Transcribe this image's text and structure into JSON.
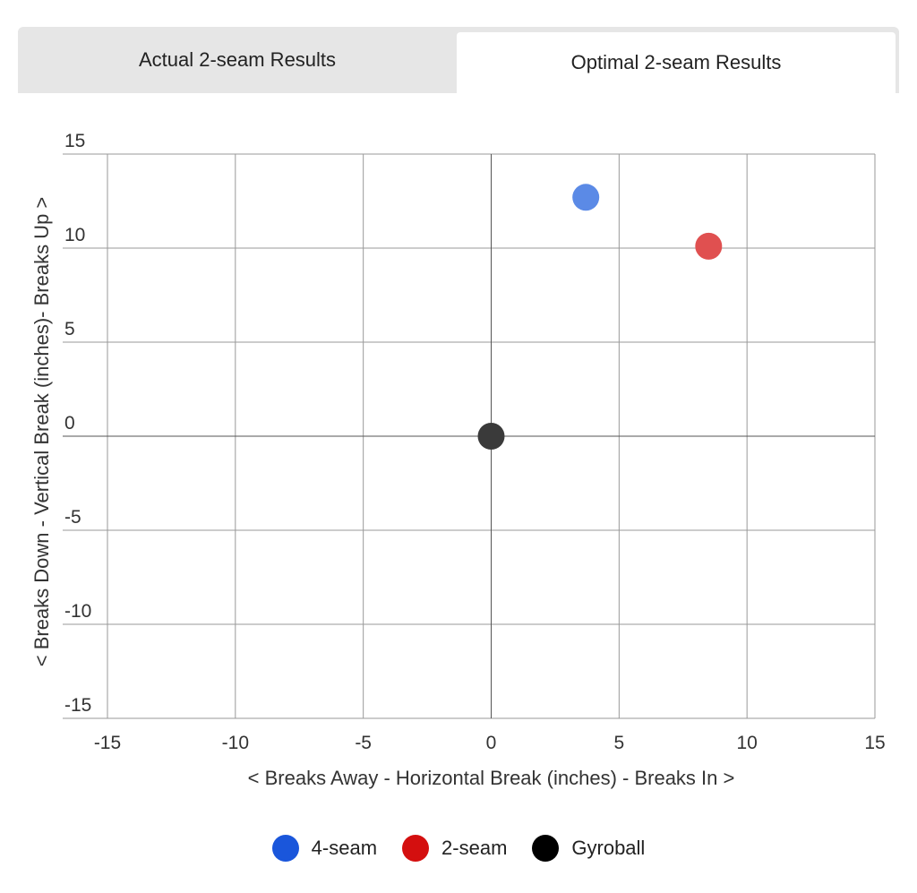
{
  "tabs": [
    {
      "label": "Actual 2-seam Results",
      "active": false
    },
    {
      "label": "Optimal 2-seam Results",
      "active": true
    }
  ],
  "chart_data": {
    "type": "scatter",
    "xlabel": "< Breaks Away - Horizontal Break (inches) - Breaks In >",
    "ylabel": "< Breaks Down - Vertical Break (inches)- Breaks Up >",
    "xlim": [
      -15,
      15
    ],
    "ylim": [
      -15,
      15
    ],
    "xticks": [
      -15,
      -10,
      -5,
      0,
      5,
      10,
      15
    ],
    "yticks": [
      15,
      10,
      5,
      0,
      -5,
      -10,
      -15
    ],
    "grid": true,
    "legend_position": "bottom",
    "series": [
      {
        "name": "4-seam",
        "color": "#1a56db",
        "marker_color": "#5b8ae6",
        "points": [
          {
            "x": 3.7,
            "y": 12.7
          }
        ]
      },
      {
        "name": "2-seam",
        "color": "#d40f0f",
        "marker_color": "#e05050",
        "points": [
          {
            "x": 8.5,
            "y": 10.1
          }
        ]
      },
      {
        "name": "Gyroball",
        "color": "#000000",
        "marker_color": "#3a3a3a",
        "points": [
          {
            "x": 0,
            "y": 0
          }
        ]
      }
    ]
  }
}
